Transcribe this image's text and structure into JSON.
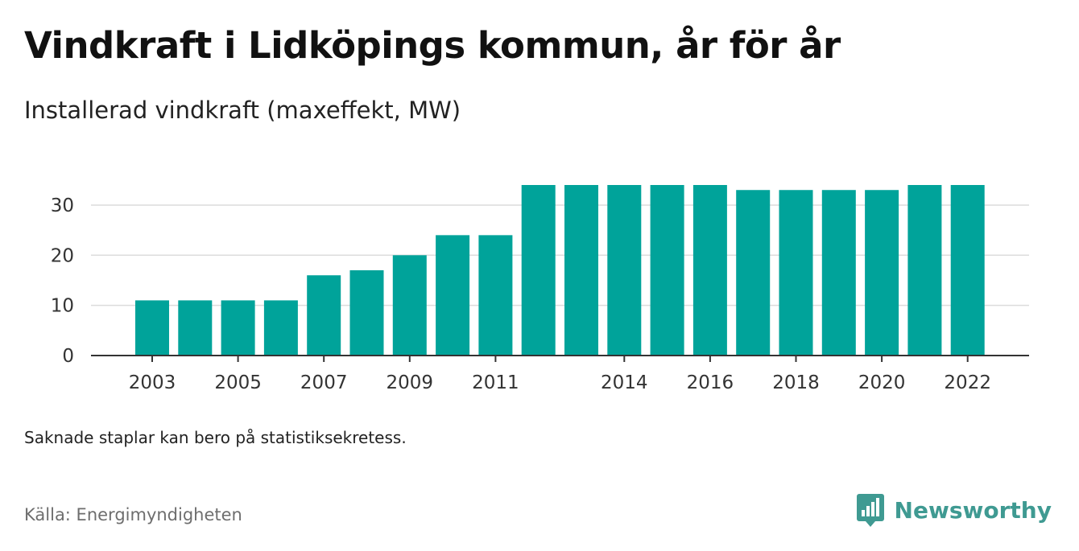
{
  "header": {
    "title": "Vindkraft i Lidköpings kommun, år för år",
    "subtitle": "Installerad vindkraft (maxeffekt, MW)"
  },
  "footer": {
    "note": "Saknade staplar kan bero på statistiksekretess.",
    "source": "Källa: Energimyndigheten",
    "brand_name": "Newsworthy",
    "brand_icon": "newsworthy-logo-icon"
  },
  "colors": {
    "bar": "#00a39a",
    "grid": "#dcdcdc",
    "axis": "#333333",
    "brand": "#3f9a92"
  },
  "chart_data": {
    "type": "bar",
    "title": "Vindkraft i Lidköpings kommun, år för år",
    "subtitle": "Installerad vindkraft (maxeffekt, MW)",
    "xlabel": "",
    "ylabel": "",
    "categories": [
      "2003",
      "2004",
      "2005",
      "2006",
      "2007",
      "2008",
      "2009",
      "2010",
      "2011",
      "2012",
      "2013",
      "2014",
      "2015",
      "2016",
      "2017",
      "2018",
      "2019",
      "2020",
      "2021",
      "2022"
    ],
    "values": [
      11,
      11,
      11,
      11,
      16,
      17,
      20,
      24,
      24,
      34,
      34,
      34,
      34,
      34,
      33,
      33,
      33,
      33,
      34,
      34
    ],
    "x_tick_labels": [
      "2003",
      "2005",
      "2007",
      "2009",
      "2011",
      "2014",
      "2016",
      "2018",
      "2020",
      "2022"
    ],
    "y_ticks": [
      0,
      10,
      20,
      30
    ],
    "ylim": [
      0,
      34
    ],
    "grid": true,
    "legend": "none"
  }
}
